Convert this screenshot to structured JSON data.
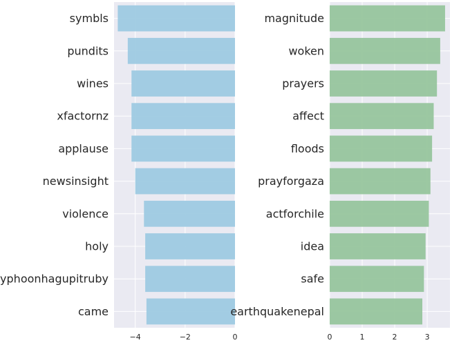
{
  "chart_data": [
    {
      "type": "bar",
      "orientation": "horizontal",
      "categories": [
        "symbls",
        "pundits",
        "wines",
        "xfactornz",
        "applause",
        "newsinsight",
        "violence",
        "holy",
        "typhoonhagupitruby",
        "came"
      ],
      "values": [
        -4.7,
        -4.3,
        -4.15,
        -4.15,
        -4.15,
        -4.0,
        -3.65,
        -3.6,
        -3.6,
        -3.55
      ],
      "xlim": [
        -4.85,
        0
      ],
      "xticks": [
        -4,
        -2,
        0
      ],
      "xtick_labels": [
        "−4",
        "−2",
        "0"
      ],
      "color": "#9ecae1",
      "grid": true,
      "title": "",
      "xlabel": "",
      "ylabel": ""
    },
    {
      "type": "bar",
      "orientation": "horizontal",
      "categories": [
        "magnitude",
        "woken",
        "prayers",
        "affect",
        "floods",
        "prayforgaza",
        "actforchile",
        "idea",
        "safe",
        "earthquakenepal"
      ],
      "values": [
        3.55,
        3.4,
        3.3,
        3.2,
        3.15,
        3.1,
        3.05,
        2.95,
        2.9,
        2.85
      ],
      "xlim": [
        0,
        3.7
      ],
      "xticks": [
        0,
        1,
        2,
        3
      ],
      "xtick_labels": [
        "0",
        "1",
        "2",
        "3"
      ],
      "color": "#97c59d",
      "grid": true,
      "title": "",
      "xlabel": "",
      "ylabel": ""
    }
  ]
}
